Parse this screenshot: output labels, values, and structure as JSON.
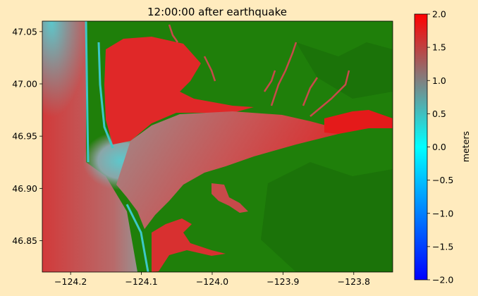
{
  "chart_data": {
    "type": "heatmap",
    "title": "12:00:00 after earthquake",
    "xlabel": "",
    "ylabel": "",
    "x_range": [
      -124.24,
      -123.745
    ],
    "y_range": [
      46.82,
      47.06
    ],
    "x_ticks": [
      {
        "value": -124.2,
        "label": "−124.2"
      },
      {
        "value": -124.1,
        "label": "−124.1"
      },
      {
        "value": -124.0,
        "label": "−124.0"
      },
      {
        "value": -123.9,
        "label": "−123.9"
      },
      {
        "value": -123.8,
        "label": "−123.8"
      }
    ],
    "y_ticks": [
      {
        "value": 46.85,
        "label": "46.85"
      },
      {
        "value": 46.9,
        "label": "46.90"
      },
      {
        "value": 46.95,
        "label": "46.95"
      },
      {
        "value": 47.0,
        "label": "47.00"
      },
      {
        "value": 47.05,
        "label": "47.05"
      }
    ],
    "colorbar": {
      "label": "meters",
      "range": [
        -2.0,
        2.0
      ],
      "ticks": [
        {
          "value": 2.0,
          "label": "2.0"
        },
        {
          "value": 1.5,
          "label": "1.5"
        },
        {
          "value": 1.0,
          "label": "1.0"
        },
        {
          "value": 0.5,
          "label": "0.5"
        },
        {
          "value": 0.0,
          "label": "0.0"
        },
        {
          "value": -0.5,
          "label": "−0.5"
        },
        {
          "value": -1.0,
          "label": "−1.0"
        },
        {
          "value": -1.5,
          "label": "−1.5"
        },
        {
          "value": -2.0,
          "label": "−2.0"
        }
      ],
      "colors": [
        "#0000FF",
        "#00FFFF",
        "#808080",
        "#FF0000"
      ]
    },
    "land_color": "#1F7F0A",
    "background_color": "#FFEBBE"
  }
}
